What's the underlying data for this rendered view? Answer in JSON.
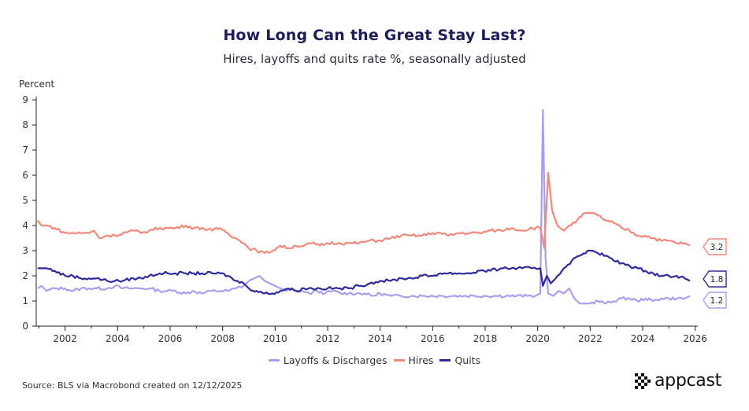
{
  "chart_data": {
    "type": "line",
    "title": "How Long Can the Great Stay Last?",
    "subtitle": "Hires, layoffs and quits rate %, seasonally adjusted",
    "ylabel": "Percent",
    "xlabel": "",
    "ylim": [
      0,
      9
    ],
    "xlim": [
      2000.9,
      2026.1
    ],
    "y_ticks": [
      0,
      1,
      2,
      3,
      4,
      5,
      6,
      7,
      8,
      9
    ],
    "x_ticks": [
      2002,
      2004,
      2006,
      2008,
      2010,
      2012,
      2014,
      2016,
      2018,
      2020,
      2022,
      2024,
      2026
    ],
    "grid": false,
    "legend_position": "bottom-center",
    "series": [
      {
        "name": "Layoffs & Discharges",
        "color": "#a89ef0",
        "end_label": "1.2",
        "points": [
          [
            2000.95,
            1.5
          ],
          [
            2001.1,
            1.6
          ],
          [
            2001.3,
            1.4
          ],
          [
            2001.6,
            1.5
          ],
          [
            2002.0,
            1.5
          ],
          [
            2002.3,
            1.4
          ],
          [
            2002.6,
            1.5
          ],
          [
            2002.9,
            1.5
          ],
          [
            2003.2,
            1.5
          ],
          [
            2003.6,
            1.5
          ],
          [
            2003.9,
            1.6
          ],
          [
            2004.2,
            1.5
          ],
          [
            2004.6,
            1.5
          ],
          [
            2004.9,
            1.5
          ],
          [
            2005.2,
            1.5
          ],
          [
            2005.6,
            1.4
          ],
          [
            2005.9,
            1.4
          ],
          [
            2006.2,
            1.4
          ],
          [
            2006.6,
            1.3
          ],
          [
            2006.9,
            1.4
          ],
          [
            2007.2,
            1.3
          ],
          [
            2007.6,
            1.4
          ],
          [
            2007.9,
            1.4
          ],
          [
            2008.2,
            1.4
          ],
          [
            2008.5,
            1.5
          ],
          [
            2008.8,
            1.6
          ],
          [
            2009.0,
            1.8
          ],
          [
            2009.2,
            1.9
          ],
          [
            2009.4,
            2.0
          ],
          [
            2009.6,
            1.8
          ],
          [
            2009.8,
            1.7
          ],
          [
            2010.0,
            1.6
          ],
          [
            2010.2,
            1.5
          ],
          [
            2010.4,
            1.4
          ],
          [
            2010.6,
            1.5
          ],
          [
            2010.8,
            1.4
          ],
          [
            2011.0,
            1.4
          ],
          [
            2011.3,
            1.3
          ],
          [
            2011.6,
            1.4
          ],
          [
            2011.9,
            1.3
          ],
          [
            2012.2,
            1.4
          ],
          [
            2012.5,
            1.3
          ],
          [
            2012.8,
            1.3
          ],
          [
            2013.1,
            1.3
          ],
          [
            2013.4,
            1.3
          ],
          [
            2013.7,
            1.2
          ],
          [
            2014.0,
            1.3
          ],
          [
            2014.4,
            1.2
          ],
          [
            2014.8,
            1.2
          ],
          [
            2015.2,
            1.2
          ],
          [
            2015.6,
            1.2
          ],
          [
            2016.0,
            1.2
          ],
          [
            2016.4,
            1.2
          ],
          [
            2016.8,
            1.2
          ],
          [
            2017.2,
            1.2
          ],
          [
            2017.6,
            1.2
          ],
          [
            2018.0,
            1.2
          ],
          [
            2018.4,
            1.2
          ],
          [
            2018.8,
            1.2
          ],
          [
            2019.2,
            1.2
          ],
          [
            2019.6,
            1.2
          ],
          [
            2019.9,
            1.2
          ],
          [
            2020.1,
            1.3
          ],
          [
            2020.2,
            8.6
          ],
          [
            2020.3,
            2.7
          ],
          [
            2020.4,
            1.3
          ],
          [
            2020.6,
            1.2
          ],
          [
            2020.8,
            1.4
          ],
          [
            2021.0,
            1.3
          ],
          [
            2021.2,
            1.5
          ],
          [
            2021.4,
            1.1
          ],
          [
            2021.6,
            0.9
          ],
          [
            2021.8,
            0.9
          ],
          [
            2022.0,
            0.9
          ],
          [
            2022.3,
            1.0
          ],
          [
            2022.6,
            0.9
          ],
          [
            2022.9,
            1.0
          ],
          [
            2023.2,
            1.1
          ],
          [
            2023.5,
            1.1
          ],
          [
            2023.8,
            1.0
          ],
          [
            2024.1,
            1.1
          ],
          [
            2024.4,
            1.0
          ],
          [
            2024.7,
            1.1
          ],
          [
            2025.0,
            1.1
          ],
          [
            2025.3,
            1.1
          ],
          [
            2025.6,
            1.1
          ],
          [
            2025.8,
            1.2
          ]
        ]
      },
      {
        "name": "Hires",
        "color": "#f2877a",
        "end_label": "3.2",
        "points": [
          [
            2000.95,
            4.2
          ],
          [
            2001.1,
            4.0
          ],
          [
            2001.3,
            4.0
          ],
          [
            2001.6,
            3.9
          ],
          [
            2002.0,
            3.7
          ],
          [
            2002.3,
            3.7
          ],
          [
            2002.6,
            3.7
          ],
          [
            2002.9,
            3.7
          ],
          [
            2003.1,
            3.8
          ],
          [
            2003.3,
            3.5
          ],
          [
            2003.6,
            3.6
          ],
          [
            2003.9,
            3.6
          ],
          [
            2004.2,
            3.7
          ],
          [
            2004.6,
            3.8
          ],
          [
            2004.9,
            3.7
          ],
          [
            2005.2,
            3.8
          ],
          [
            2005.6,
            3.9
          ],
          [
            2005.9,
            3.9
          ],
          [
            2006.2,
            3.9
          ],
          [
            2006.6,
            4.0
          ],
          [
            2006.9,
            3.9
          ],
          [
            2007.2,
            3.9
          ],
          [
            2007.6,
            3.8
          ],
          [
            2007.9,
            3.9
          ],
          [
            2008.2,
            3.7
          ],
          [
            2008.5,
            3.5
          ],
          [
            2008.8,
            3.3
          ],
          [
            2009.0,
            3.1
          ],
          [
            2009.3,
            3.0
          ],
          [
            2009.6,
            2.9
          ],
          [
            2009.9,
            3.0
          ],
          [
            2010.2,
            3.2
          ],
          [
            2010.5,
            3.1
          ],
          [
            2010.8,
            3.2
          ],
          [
            2011.1,
            3.2
          ],
          [
            2011.4,
            3.3
          ],
          [
            2011.7,
            3.2
          ],
          [
            2012.0,
            3.3
          ],
          [
            2012.4,
            3.3
          ],
          [
            2012.8,
            3.3
          ],
          [
            2013.2,
            3.3
          ],
          [
            2013.6,
            3.4
          ],
          [
            2014.0,
            3.4
          ],
          [
            2014.4,
            3.5
          ],
          [
            2014.8,
            3.6
          ],
          [
            2015.2,
            3.6
          ],
          [
            2015.6,
            3.6
          ],
          [
            2016.0,
            3.7
          ],
          [
            2016.3,
            3.7
          ],
          [
            2016.6,
            3.6
          ],
          [
            2017.0,
            3.7
          ],
          [
            2017.4,
            3.7
          ],
          [
            2017.8,
            3.7
          ],
          [
            2018.2,
            3.8
          ],
          [
            2018.6,
            3.8
          ],
          [
            2019.0,
            3.9
          ],
          [
            2019.4,
            3.8
          ],
          [
            2019.8,
            3.9
          ],
          [
            2020.1,
            3.9
          ],
          [
            2020.25,
            3.1
          ],
          [
            2020.4,
            6.1
          ],
          [
            2020.55,
            4.6
          ],
          [
            2020.75,
            4.0
          ],
          [
            2021.0,
            3.8
          ],
          [
            2021.2,
            4.0
          ],
          [
            2021.5,
            4.2
          ],
          [
            2021.8,
            4.5
          ],
          [
            2022.0,
            4.5
          ],
          [
            2022.3,
            4.4
          ],
          [
            2022.6,
            4.2
          ],
          [
            2022.9,
            4.1
          ],
          [
            2023.2,
            3.9
          ],
          [
            2023.5,
            3.8
          ],
          [
            2023.8,
            3.6
          ],
          [
            2024.1,
            3.6
          ],
          [
            2024.4,
            3.5
          ],
          [
            2024.7,
            3.4
          ],
          [
            2025.0,
            3.4
          ],
          [
            2025.3,
            3.3
          ],
          [
            2025.6,
            3.3
          ],
          [
            2025.8,
            3.2
          ]
        ]
      },
      {
        "name": "Quits",
        "color": "#2d2a9e",
        "end_label": "1.8",
        "points": [
          [
            2000.95,
            2.3
          ],
          [
            2001.1,
            2.3
          ],
          [
            2001.3,
            2.3
          ],
          [
            2001.6,
            2.2
          ],
          [
            2002.0,
            2.0
          ],
          [
            2002.3,
            2.0
          ],
          [
            2002.6,
            1.9
          ],
          [
            2002.9,
            1.9
          ],
          [
            2003.2,
            1.9
          ],
          [
            2003.6,
            1.8
          ],
          [
            2003.9,
            1.8
          ],
          [
            2004.2,
            1.8
          ],
          [
            2004.6,
            1.9
          ],
          [
            2004.9,
            1.9
          ],
          [
            2005.2,
            2.0
          ],
          [
            2005.6,
            2.1
          ],
          [
            2005.9,
            2.1
          ],
          [
            2006.2,
            2.1
          ],
          [
            2006.6,
            2.1
          ],
          [
            2006.9,
            2.1
          ],
          [
            2007.2,
            2.1
          ],
          [
            2007.6,
            2.1
          ],
          [
            2007.9,
            2.1
          ],
          [
            2008.2,
            2.0
          ],
          [
            2008.5,
            1.8
          ],
          [
            2008.8,
            1.7
          ],
          [
            2009.0,
            1.5
          ],
          [
            2009.3,
            1.4
          ],
          [
            2009.6,
            1.3
          ],
          [
            2009.9,
            1.3
          ],
          [
            2010.2,
            1.4
          ],
          [
            2010.5,
            1.5
          ],
          [
            2010.8,
            1.4
          ],
          [
            2011.1,
            1.5
          ],
          [
            2011.4,
            1.5
          ],
          [
            2011.7,
            1.5
          ],
          [
            2012.0,
            1.5
          ],
          [
            2012.4,
            1.5
          ],
          [
            2012.8,
            1.5
          ],
          [
            2013.2,
            1.6
          ],
          [
            2013.6,
            1.7
          ],
          [
            2014.0,
            1.8
          ],
          [
            2014.4,
            1.8
          ],
          [
            2014.8,
            1.9
          ],
          [
            2015.2,
            1.9
          ],
          [
            2015.6,
            2.0
          ],
          [
            2016.0,
            2.0
          ],
          [
            2016.3,
            2.1
          ],
          [
            2016.6,
            2.1
          ],
          [
            2017.0,
            2.1
          ],
          [
            2017.4,
            2.1
          ],
          [
            2017.8,
            2.2
          ],
          [
            2018.2,
            2.2
          ],
          [
            2018.6,
            2.3
          ],
          [
            2019.0,
            2.3
          ],
          [
            2019.4,
            2.3
          ],
          [
            2019.8,
            2.3
          ],
          [
            2020.1,
            2.3
          ],
          [
            2020.2,
            1.6
          ],
          [
            2020.35,
            2.0
          ],
          [
            2020.5,
            1.7
          ],
          [
            2020.75,
            2.0
          ],
          [
            2021.0,
            2.3
          ],
          [
            2021.3,
            2.6
          ],
          [
            2021.6,
            2.8
          ],
          [
            2021.9,
            3.0
          ],
          [
            2022.1,
            3.0
          ],
          [
            2022.3,
            2.9
          ],
          [
            2022.6,
            2.8
          ],
          [
            2022.9,
            2.6
          ],
          [
            2023.2,
            2.5
          ],
          [
            2023.5,
            2.4
          ],
          [
            2023.8,
            2.3
          ],
          [
            2024.1,
            2.2
          ],
          [
            2024.4,
            2.1
          ],
          [
            2024.7,
            2.0
          ],
          [
            2025.0,
            2.0
          ],
          [
            2025.3,
            2.0
          ],
          [
            2025.6,
            1.9
          ],
          [
            2025.8,
            1.8
          ]
        ]
      }
    ]
  },
  "source": "Source: BLS via Macrobond created on 12/12/2025",
  "logo_text": "appcast"
}
